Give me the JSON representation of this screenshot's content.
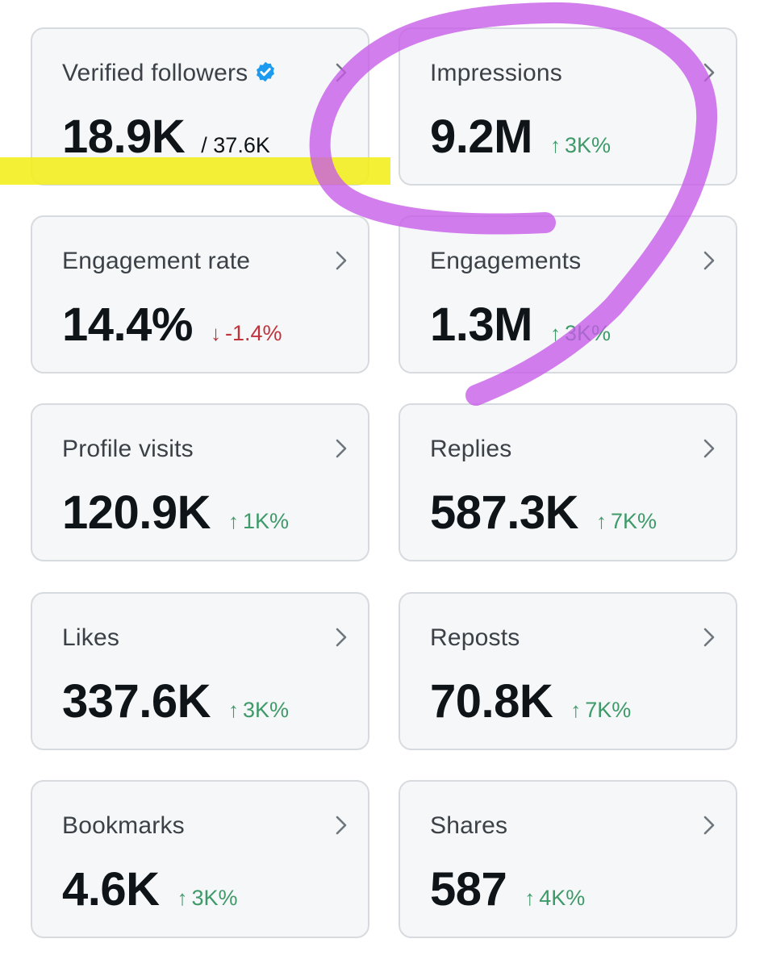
{
  "colors": {
    "card_bg": "#f6f7f8",
    "card_border": "#d7dbdf",
    "up": "#3f9a6a",
    "down": "#c0333c",
    "verified": "#1d9bf0",
    "highlight_yellow": "#f2ee1a",
    "annotation_purple": "#c75ae8"
  },
  "metrics": [
    {
      "label": "Verified followers",
      "value": "18.9K",
      "total": "/ 37.6K",
      "verified_icon": "verified-badge-icon"
    },
    {
      "label": "Impressions",
      "value": "9.2M",
      "delta": "3K%",
      "direction": "up"
    },
    {
      "label": "Engagement rate",
      "value": "14.4%",
      "delta": "-1.4%",
      "direction": "down"
    },
    {
      "label": "Engagements",
      "value": "1.3M",
      "delta": "3K%",
      "direction": "up"
    },
    {
      "label": "Profile visits",
      "value": "120.9K",
      "delta": "1K%",
      "direction": "up"
    },
    {
      "label": "Replies",
      "value": "587.3K",
      "delta": "7K%",
      "direction": "up"
    },
    {
      "label": "Likes",
      "value": "337.6K",
      "delta": "3K%",
      "direction": "up"
    },
    {
      "label": "Reposts",
      "value": "70.8K",
      "delta": "7K%",
      "direction": "up"
    },
    {
      "label": "Bookmarks",
      "value": "4.6K",
      "delta": "3K%",
      "direction": "up"
    },
    {
      "label": "Shares",
      "value": "587",
      "delta": "4K%",
      "direction": "up"
    }
  ],
  "arrows": {
    "up": "↑",
    "down": "↓"
  }
}
